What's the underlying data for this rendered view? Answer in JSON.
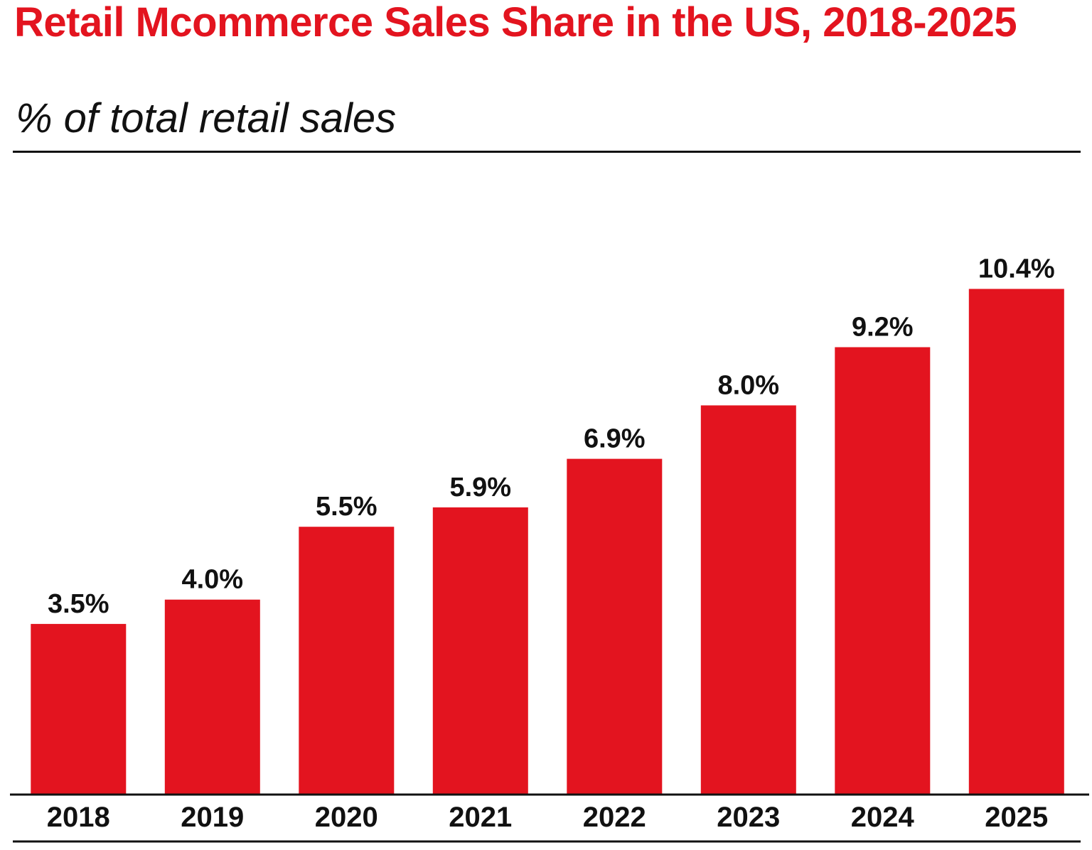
{
  "header": {
    "title": "Retail Mcommerce Sales Share in the US, 2018-2025",
    "subtitle": "% of total retail sales"
  },
  "colors": {
    "title": "#e3141f",
    "bar": "#e3141f",
    "text": "#111111",
    "axis": "#111111"
  },
  "chart_data": {
    "type": "bar",
    "title": "Retail Mcommerce Sales Share in the US, 2018-2025",
    "subtitle": "% of total retail sales",
    "categories": [
      "2018",
      "2019",
      "2020",
      "2021",
      "2022",
      "2023",
      "2024",
      "2025"
    ],
    "values": [
      3.5,
      4.0,
      5.5,
      5.9,
      6.9,
      8.0,
      9.2,
      10.4
    ],
    "data_labels": [
      "3.5%",
      "4.0%",
      "5.5%",
      "5.9%",
      "6.9%",
      "8.0%",
      "9.2%",
      "10.4%"
    ],
    "xlabel": "",
    "ylabel": "",
    "ylim": [
      0,
      12.5
    ],
    "grid": false,
    "legend": "none"
  }
}
